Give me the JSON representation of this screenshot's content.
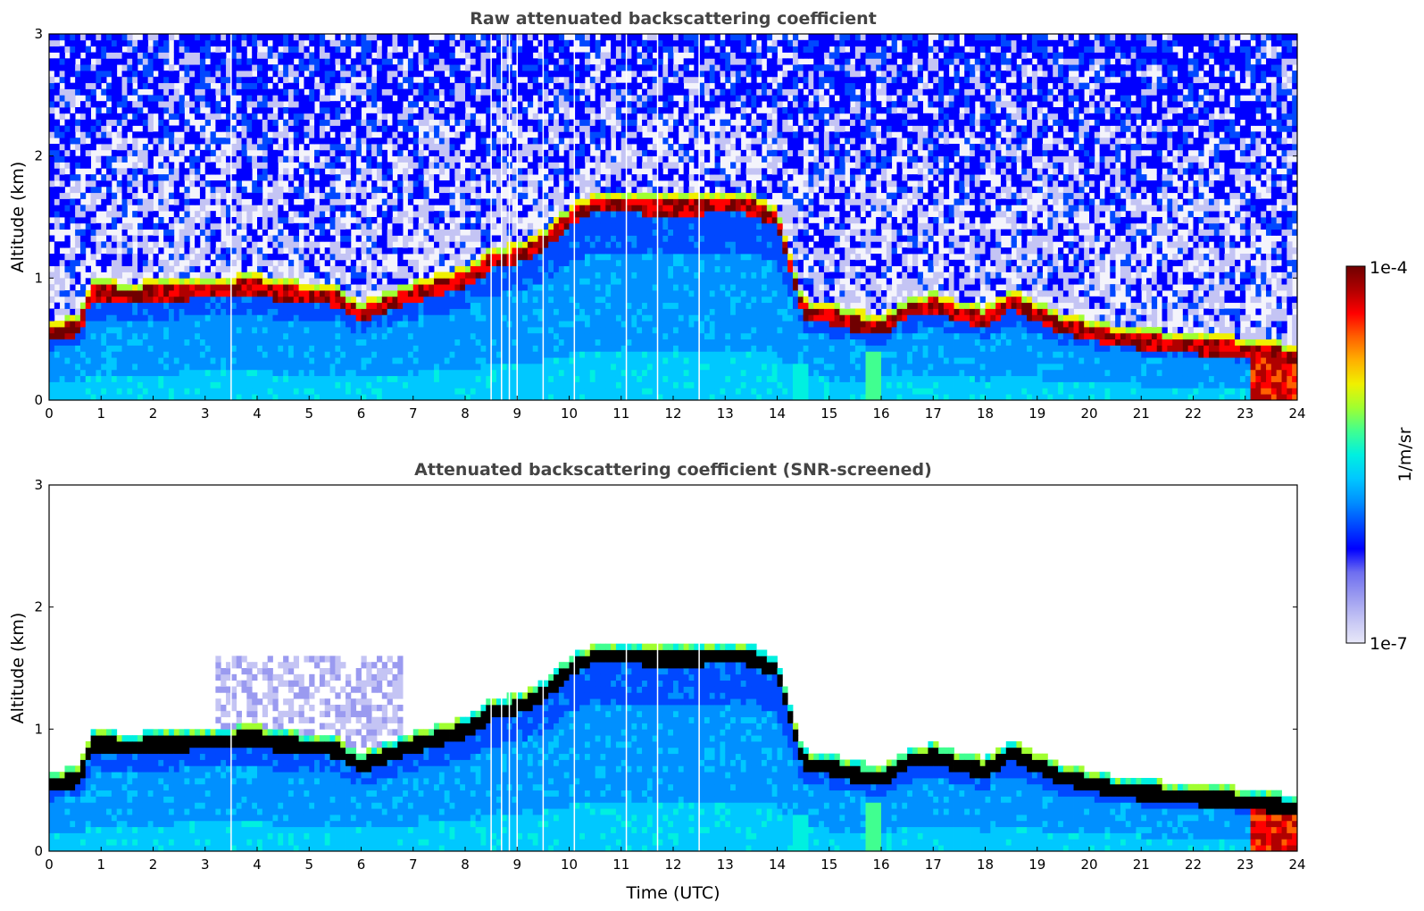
{
  "colors": {
    "colormap": [
      "#e8e8f8",
      "#c4c4f4",
      "#9a9af0",
      "#6e6ef0",
      "#0000ff",
      "#0048ff",
      "#0090ff",
      "#00c8ff",
      "#00f0e0",
      "#40ff90",
      "#a0ff30",
      "#f0f000",
      "#ffb000",
      "#ff6000",
      "#ff0000",
      "#b00000",
      "#700000"
    ],
    "cloud_core": "#000000"
  },
  "chart_data": [
    {
      "type": "heatmap",
      "title": "Raw attenuated backscattering coefficient",
      "xlabel": "",
      "ylabel": "Altitude (km)",
      "xlim": [
        0,
        24
      ],
      "ylim": [
        0,
        3
      ],
      "xticks": [
        "0",
        "1",
        "2",
        "3",
        "4",
        "5",
        "6",
        "7",
        "8",
        "9",
        "10",
        "11",
        "12",
        "13",
        "14",
        "15",
        "16",
        "17",
        "18",
        "19",
        "20",
        "21",
        "22",
        "23",
        "24"
      ],
      "yticks": [
        "0",
        "1",
        "2",
        "3"
      ],
      "variable": "attenuated backscatter",
      "screened": false,
      "cloud_base_km": {
        "time_utc": [
          0,
          0.6,
          0.8,
          1.5,
          2.5,
          3.2,
          3.5,
          4.0,
          4.3,
          5.0,
          5.5,
          6.0,
          6.5,
          7.0,
          7.5,
          8.0,
          8.5,
          9.0,
          9.5,
          10.0,
          10.5,
          11.0,
          11.5,
          12.0,
          12.5,
          13.0,
          13.5,
          14.0,
          14.5,
          15.0,
          15.5,
          16.0,
          16.5,
          17.0,
          17.5,
          18.0,
          18.5,
          19.0,
          19.5,
          20.0,
          20.5,
          21.0,
          21.5,
          22.0,
          22.5,
          23.0,
          23.5,
          23.8
        ],
        "altitude_km": [
          0.55,
          0.62,
          0.9,
          0.88,
          0.9,
          0.92,
          0.93,
          0.95,
          0.9,
          0.88,
          0.85,
          0.72,
          0.8,
          0.88,
          0.95,
          1.0,
          1.15,
          1.2,
          1.3,
          1.5,
          1.62,
          1.62,
          1.6,
          1.6,
          1.6,
          1.62,
          1.6,
          1.5,
          0.75,
          0.7,
          0.65,
          0.6,
          0.75,
          0.8,
          0.72,
          0.68,
          0.82,
          0.72,
          0.62,
          0.58,
          0.52,
          0.5,
          0.48,
          0.46,
          0.44,
          0.43,
          0.4,
          0.38
        ]
      },
      "colorbar": {
        "label": "1/m/sr",
        "min_label": "1e-7",
        "max_label": "1e-4",
        "vmin": 1e-07,
        "vmax": 0.0001,
        "scale": "log"
      }
    },
    {
      "type": "heatmap",
      "title": "Attenuated backscattering coefficient (SNR-screened)",
      "xlabel": "Time (UTC)",
      "ylabel": "Altitude (km)",
      "xlim": [
        0,
        24
      ],
      "ylim": [
        0,
        3
      ],
      "xticks": [
        "0",
        "1",
        "2",
        "3",
        "4",
        "5",
        "6",
        "7",
        "8",
        "9",
        "10",
        "11",
        "12",
        "13",
        "14",
        "15",
        "16",
        "17",
        "18",
        "19",
        "20",
        "21",
        "22",
        "23",
        "24"
      ],
      "yticks": [
        "0",
        "1",
        "2",
        "3"
      ],
      "variable": "attenuated backscatter",
      "screened": true,
      "colorbar": {
        "label": "1/m/sr",
        "min_label": "1e-7",
        "max_label": "1e-4",
        "vmin": 1e-07,
        "vmax": 0.0001,
        "scale": "log"
      }
    }
  ]
}
